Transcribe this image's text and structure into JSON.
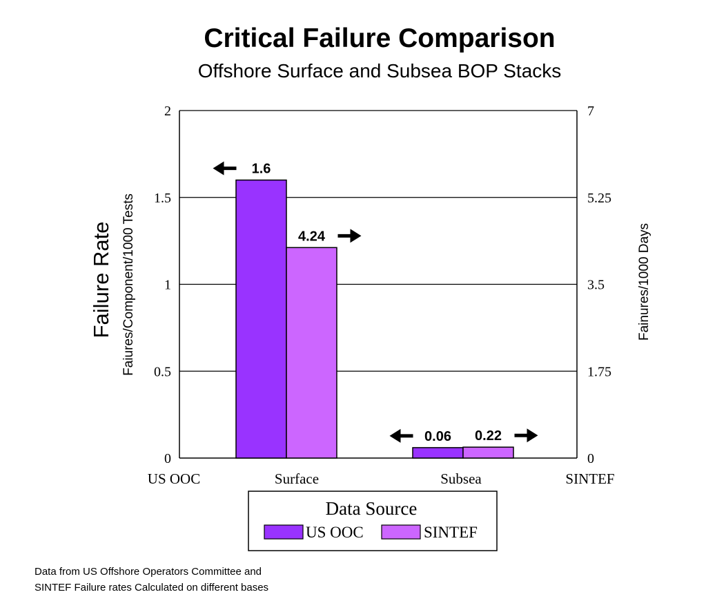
{
  "chart_data": {
    "type": "bar",
    "title": "Critical Failure Comparison",
    "subtitle": "Offshore Surface and Subsea BOP Stacks",
    "categories": [
      "Surface",
      "Subsea"
    ],
    "x_tick_labels": [
      "US OOC",
      "Surface",
      "Subsea",
      "SINTEF"
    ],
    "series": [
      {
        "name": "US OOC",
        "axis": "left",
        "values": [
          1.6,
          0.06
        ],
        "labels": [
          "1.6",
          "0.06"
        ],
        "color": "#9933ff"
      },
      {
        "name": "SINTEF",
        "axis": "right",
        "values": [
          4.24,
          0.22
        ],
        "labels": [
          "4.24",
          "0.22"
        ],
        "color": "#cc66ff"
      }
    ],
    "y_left": {
      "label_main": "Failure Rate",
      "label_sub": "Faiures/Component/1000 Tests",
      "ylim": [
        0,
        2
      ],
      "ticks": [
        "0",
        "0.5",
        "1",
        "1.5",
        "2"
      ]
    },
    "y_right": {
      "label": "Fainures/1000 Days",
      "ylim": [
        0,
        7
      ],
      "ticks": [
        "0",
        "1.75",
        "3.5",
        "5.25",
        "7"
      ]
    },
    "grid": true,
    "legend": {
      "title": "Data Source",
      "placement": "bottom-center",
      "entries": [
        "US OOC",
        "SINTEF"
      ]
    },
    "note_lines": [
      "Data from US Offshore Operators Committee and",
      "SINTEF Failure rates Calculated on different bases"
    ]
  }
}
